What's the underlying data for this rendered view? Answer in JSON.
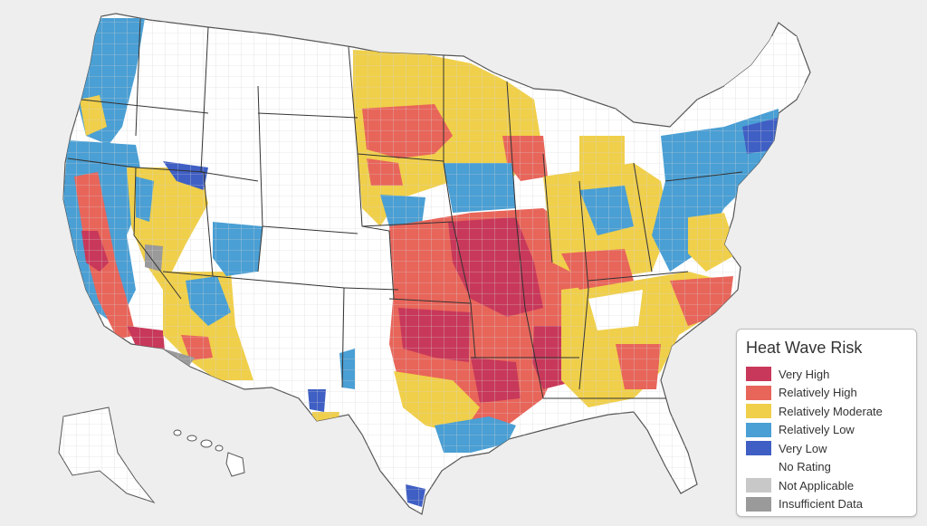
{
  "legend": {
    "title": "Heat Wave Risk",
    "items": [
      {
        "label": "Very High",
        "color": "#c8385a"
      },
      {
        "label": "Relatively High",
        "color": "#e8655a"
      },
      {
        "label": "Relatively Moderate",
        "color": "#f0cf4a"
      },
      {
        "label": "Relatively Low",
        "color": "#4a9fd4"
      },
      {
        "label": "Very Low",
        "color": "#3f5fc4"
      },
      {
        "label": "No Rating",
        "color": "#ffffff"
      },
      {
        "label": "Not Applicable",
        "color": "#c8c8c8"
      },
      {
        "label": "Insufficient Data",
        "color": "#9a9a9a"
      }
    ]
  },
  "colors": {
    "background": "#eeeeee",
    "land": "#ffffff",
    "state_border": "#333333",
    "county_border": "#cccccc"
  }
}
